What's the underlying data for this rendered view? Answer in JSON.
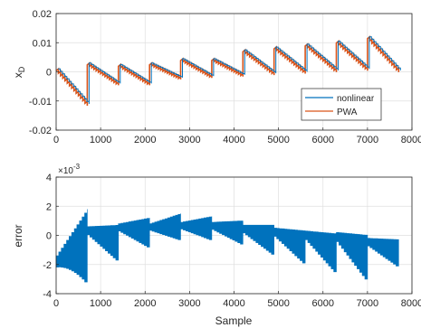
{
  "colors": {
    "nonlinear": "#0072BD",
    "pwa": "#D95319",
    "error": "#0072BD",
    "grid": "#dfdfdf",
    "axis": "#262626"
  },
  "chart_data": [
    {
      "type": "line",
      "ylabel": "x",
      "ylabel_sub": "D",
      "xlabel": "",
      "xlim": [
        0,
        8000
      ],
      "ylim": [
        -0.02,
        0.02
      ],
      "xticks": [
        "0",
        "1000",
        "2000",
        "3000",
        "4000",
        "5000",
        "6000",
        "7000",
        "8000"
      ],
      "yticks": [
        "-0.02",
        "-0.01",
        "0",
        "0.01",
        "0.02"
      ],
      "grid": true,
      "legend_position": "bottom-right",
      "legend": [
        "nonlinear",
        "PWA"
      ],
      "cycles": [
        {
          "x_start": 0,
          "x_end": 700,
          "y_start": 0.001,
          "y_end": -0.011
        },
        {
          "x_start": 700,
          "x_end": 1400,
          "y_start": 0.003,
          "y_end": -0.004
        },
        {
          "x_start": 1400,
          "x_end": 2100,
          "y_start": 0.0025,
          "y_end": -0.004
        },
        {
          "x_start": 2100,
          "x_end": 2800,
          "y_start": 0.003,
          "y_end": -0.002
        },
        {
          "x_start": 2800,
          "x_end": 3500,
          "y_start": 0.0045,
          "y_end": -0.0015
        },
        {
          "x_start": 3500,
          "x_end": 4200,
          "y_start": 0.0045,
          "y_end": -0.001
        },
        {
          "x_start": 4200,
          "x_end": 4900,
          "y_start": 0.0075,
          "y_end": -0.0005
        },
        {
          "x_start": 4900,
          "x_end": 5600,
          "y_start": 0.0085,
          "y_end": 0.0
        },
        {
          "x_start": 5600,
          "x_end": 6300,
          "y_start": 0.0095,
          "y_end": 0.0005
        },
        {
          "x_start": 6300,
          "x_end": 7000,
          "y_start": 0.0105,
          "y_end": 0.001
        },
        {
          "x_start": 7000,
          "x_end": 7700,
          "y_start": 0.012,
          "y_end": 0.0005
        }
      ]
    },
    {
      "type": "area",
      "ylabel": "error",
      "xlabel": "Sample",
      "multiplier": "×10",
      "multiplier_exp": "-3",
      "xlim": [
        0,
        8000
      ],
      "ylim": [
        -4,
        4
      ],
      "xticks": [
        "0",
        "1000",
        "2000",
        "3000",
        "4000",
        "5000",
        "6000",
        "7000",
        "8000"
      ],
      "yticks": [
        "-4",
        "-2",
        "0",
        "2",
        "4"
      ],
      "grid": true,
      "cycles": [
        {
          "x_start": 0,
          "x_end": 700,
          "center_start": -1.8,
          "center_end": 0.0,
          "start_halfwidth": 0.4,
          "end_halfwidth": 1.8,
          "end_lower": -3.2
        },
        {
          "x_start": 700,
          "x_end": 1400,
          "center_start": 0.4,
          "center_end": -0.5,
          "start_halfwidth": 0.2,
          "end_halfwidth": 1.2
        },
        {
          "x_start": 1400,
          "x_end": 2100,
          "center_start": 0.6,
          "center_end": 0.2,
          "start_halfwidth": 0.2,
          "end_halfwidth": 1.0
        },
        {
          "x_start": 2100,
          "x_end": 2800,
          "center_start": 0.6,
          "center_end": 0.6,
          "start_halfwidth": 0.2,
          "end_halfwidth": 0.9
        },
        {
          "x_start": 2800,
          "x_end": 3500,
          "center_start": 0.7,
          "center_end": 0.5,
          "start_halfwidth": 0.2,
          "end_halfwidth": 0.8
        },
        {
          "x_start": 3500,
          "x_end": 4200,
          "center_start": 0.7,
          "center_end": 0.2,
          "start_halfwidth": 0.2,
          "end_halfwidth": 0.8
        },
        {
          "x_start": 4200,
          "x_end": 4900,
          "center_start": 0.5,
          "center_end": -0.3,
          "start_halfwidth": 0.2,
          "end_halfwidth": 1.0
        },
        {
          "x_start": 4900,
          "x_end": 5600,
          "center_start": 0.3,
          "center_end": -0.8,
          "start_halfwidth": 0.2,
          "end_halfwidth": 1.1
        },
        {
          "x_start": 5600,
          "x_end": 6300,
          "center_start": 0.1,
          "center_end": -1.2,
          "start_halfwidth": 0.2,
          "end_halfwidth": 1.3
        },
        {
          "x_start": 6300,
          "x_end": 7000,
          "center_start": 0.0,
          "center_end": -1.5,
          "start_halfwidth": 0.2,
          "end_halfwidth": 1.5
        },
        {
          "x_start": 7000,
          "x_end": 7700,
          "center_start": -0.4,
          "center_end": -1.2,
          "start_halfwidth": 0.2,
          "end_halfwidth": 0.9
        }
      ]
    }
  ]
}
